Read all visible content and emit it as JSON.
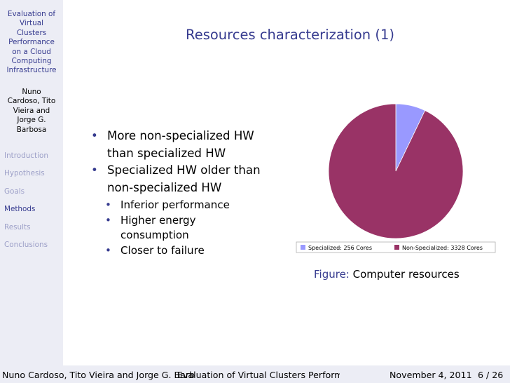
{
  "sidebar": {
    "title_lines": [
      "Evaluation of",
      "Virtual",
      "Clusters",
      "Performance",
      "on a Cloud",
      "Computing",
      "Infrastructure"
    ],
    "author_lines": [
      "Nuno",
      "Cardoso, Tito",
      "Vieira and",
      "Jorge G.",
      "Barbosa"
    ],
    "nav": [
      {
        "label": "Introduction",
        "active": false
      },
      {
        "label": "Hypothesis",
        "active": false
      },
      {
        "label": "Goals",
        "active": false
      },
      {
        "label": "Methods",
        "active": true
      },
      {
        "label": "Results",
        "active": false
      },
      {
        "label": "Conclusions",
        "active": false
      }
    ]
  },
  "slide": {
    "title": "Resources characterization (1)",
    "bullets": [
      {
        "lines": [
          "More non-specialized HW",
          "than specialized HW"
        ]
      },
      {
        "lines": [
          "Specialized HW older than",
          "non-specialized HW"
        ],
        "subitems": [
          [
            "Inferior performance"
          ],
          [
            "Higher energy",
            "consumption"
          ],
          [
            "Closer to failure"
          ]
        ]
      }
    ],
    "bullet_glyph": "•"
  },
  "chart_data": {
    "type": "pie",
    "labels": [
      "Specialized: 256 Cores",
      "Non-Specialized: 3328 Cores"
    ],
    "values": [
      256,
      3328
    ],
    "colors": [
      "#9999ff",
      "#993366"
    ],
    "legend_placement": "bottom"
  },
  "caption": {
    "label": "Figure:",
    "text": "Computer resources"
  },
  "footer": {
    "authors": "Nuno Cardoso, Tito Vieira and Jorge G. Barb",
    "title": "Evaluation of Virtual Clusters Performance on a Cloud Computing Infrastructure",
    "date": "November 4, 2011",
    "page": "6 / 26"
  },
  "theme": {
    "accent": "#363b8f",
    "sidebar_bg": "#ecedf5",
    "nav_inactive": "#9da0c8"
  }
}
